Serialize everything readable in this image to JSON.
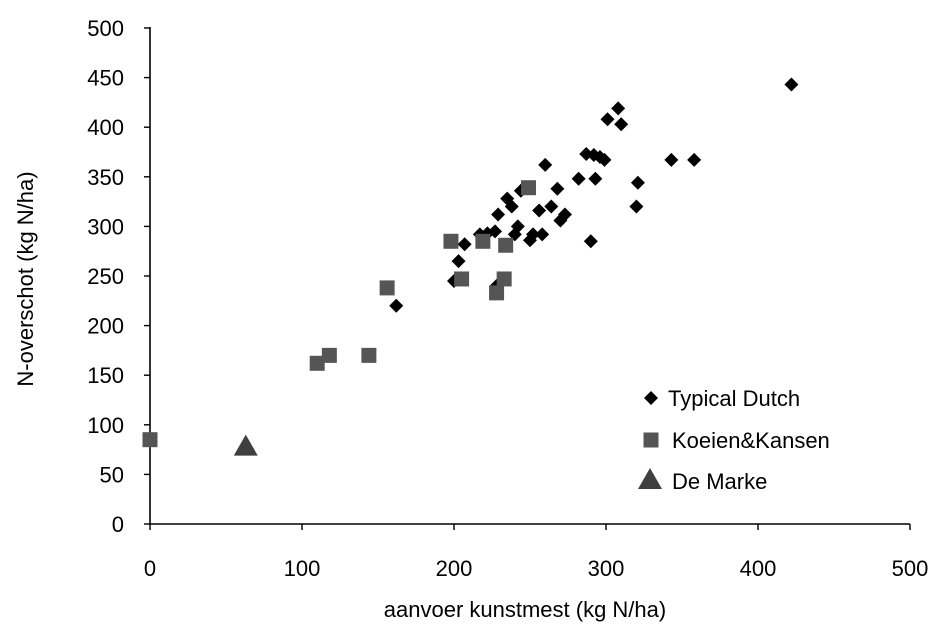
{
  "chart_data": {
    "type": "scatter",
    "title": "",
    "xlabel": "aanvoer kunstmest (kg N/ha)",
    "ylabel": "N-overschot (kg N/ha)",
    "xlim": [
      0,
      500
    ],
    "ylim": [
      0,
      500
    ],
    "x_ticks": [
      "0",
      "100",
      "200",
      "300",
      "400",
      "500"
    ],
    "y_ticks": [
      "0",
      "50",
      "100",
      "150",
      "200",
      "250",
      "300",
      "350",
      "400",
      "450",
      "500"
    ],
    "grid": false,
    "legend_position": "bottom-right",
    "series": [
      {
        "name": "Typical Dutch",
        "marker": "diamond",
        "color": "#000000",
        "points": [
          [
            162,
            220
          ],
          [
            200,
            245
          ],
          [
            203,
            265
          ],
          [
            207,
            282
          ],
          [
            217,
            292
          ],
          [
            222,
            293
          ],
          [
            227,
            295
          ],
          [
            228,
            240
          ],
          [
            229,
            312
          ],
          [
            235,
            328
          ],
          [
            238,
            320
          ],
          [
            240,
            292
          ],
          [
            242,
            300
          ],
          [
            244,
            336
          ],
          [
            250,
            286
          ],
          [
            252,
            292
          ],
          [
            256,
            316
          ],
          [
            258,
            292
          ],
          [
            260,
            362
          ],
          [
            264,
            320
          ],
          [
            268,
            338
          ],
          [
            270,
            306
          ],
          [
            273,
            312
          ],
          [
            282,
            348
          ],
          [
            287,
            373
          ],
          [
            290,
            285
          ],
          [
            292,
            372
          ],
          [
            293,
            348
          ],
          [
            296,
            370
          ],
          [
            299,
            367
          ],
          [
            301,
            408
          ],
          [
            308,
            419
          ],
          [
            310,
            403
          ],
          [
            320,
            320
          ],
          [
            321,
            344
          ],
          [
            343,
            367
          ],
          [
            358,
            367
          ],
          [
            422,
            443
          ]
        ]
      },
      {
        "name": "Koeien&Kansen",
        "marker": "square",
        "color": "#555555",
        "points": [
          [
            0,
            85
          ],
          [
            110,
            162
          ],
          [
            118,
            170
          ],
          [
            144,
            170
          ],
          [
            156,
            238
          ],
          [
            198,
            285
          ],
          [
            205,
            247
          ],
          [
            219,
            285
          ],
          [
            228,
            233
          ],
          [
            233,
            247
          ],
          [
            234,
            281
          ],
          [
            249,
            339
          ]
        ]
      },
      {
        "name": "De Marke",
        "marker": "triangle",
        "color": "#3f3f3f",
        "points": [
          [
            63,
            77
          ]
        ]
      }
    ]
  }
}
